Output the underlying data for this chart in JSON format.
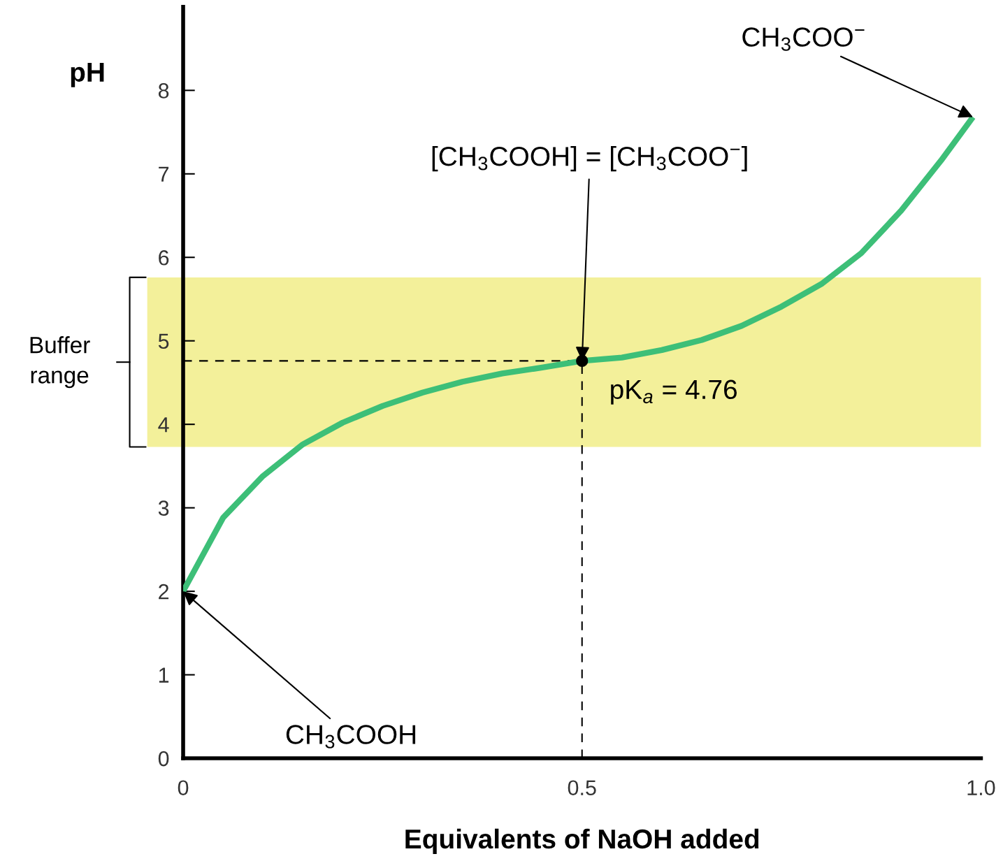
{
  "chart_data": {
    "type": "line",
    "xlabel": "Equivalents of NaOH added",
    "ylabel": "pH",
    "xlim": [
      0,
      1.0
    ],
    "ylim": [
      0,
      9
    ],
    "xticks": [
      0,
      0.5,
      {
        "value": 1.0,
        "label": "1.0"
      }
    ],
    "yticks": [
      0,
      1,
      2,
      3,
      4,
      5,
      6,
      7,
      8
    ],
    "grid": false,
    "series": [
      {
        "color": "#3dbf78",
        "x": [
          0,
          0.05,
          0.1,
          0.15,
          0.2,
          0.25,
          0.3,
          0.35,
          0.4,
          0.45,
          0.5,
          0.55,
          0.6,
          0.65,
          0.7,
          0.75,
          0.8,
          0.85,
          0.9,
          0.95,
          0.99
        ],
        "values": [
          2.0,
          2.88,
          3.38,
          3.76,
          4.02,
          4.22,
          4.38,
          4.51,
          4.61,
          4.68,
          4.76,
          4.8,
          4.89,
          5.01,
          5.18,
          5.41,
          5.68,
          6.05,
          6.56,
          7.16,
          7.68
        ]
      },
      {
        "type": "scatter",
        "color": "#000000",
        "x": [
          0.5
        ],
        "values": [
          4.76
        ],
        "marker": "circle"
      }
    ],
    "bands": [
      {
        "axis": "y",
        "from": 3.73,
        "to": 5.76,
        "label": "Buffer range",
        "color": "#f3f09a"
      }
    ],
    "ref_lines": [
      {
        "axis": "y",
        "value": 4.76,
        "color": "#000000",
        "line_style": "dashed"
      },
      {
        "axis": "x",
        "value": 0.5,
        "color": "#000000",
        "line_style": "dashed"
      }
    ],
    "annotations": [
      {
        "text": "[CH$_{3}$COOH] = [CH$_{3}$COO$^{−}$]",
        "x": 0.5,
        "y": 4.76
      },
      {
        "text": "pK$_{a}$ = 4.76",
        "x": 0.5,
        "y": 4.76
      },
      {
        "text": "CH$_{3}$COOH",
        "x": 0,
        "y": 2.0
      },
      {
        "text": "CH$_{3}$COO$^{−}$",
        "x": 0.99,
        "y": 7.68
      }
    ]
  }
}
